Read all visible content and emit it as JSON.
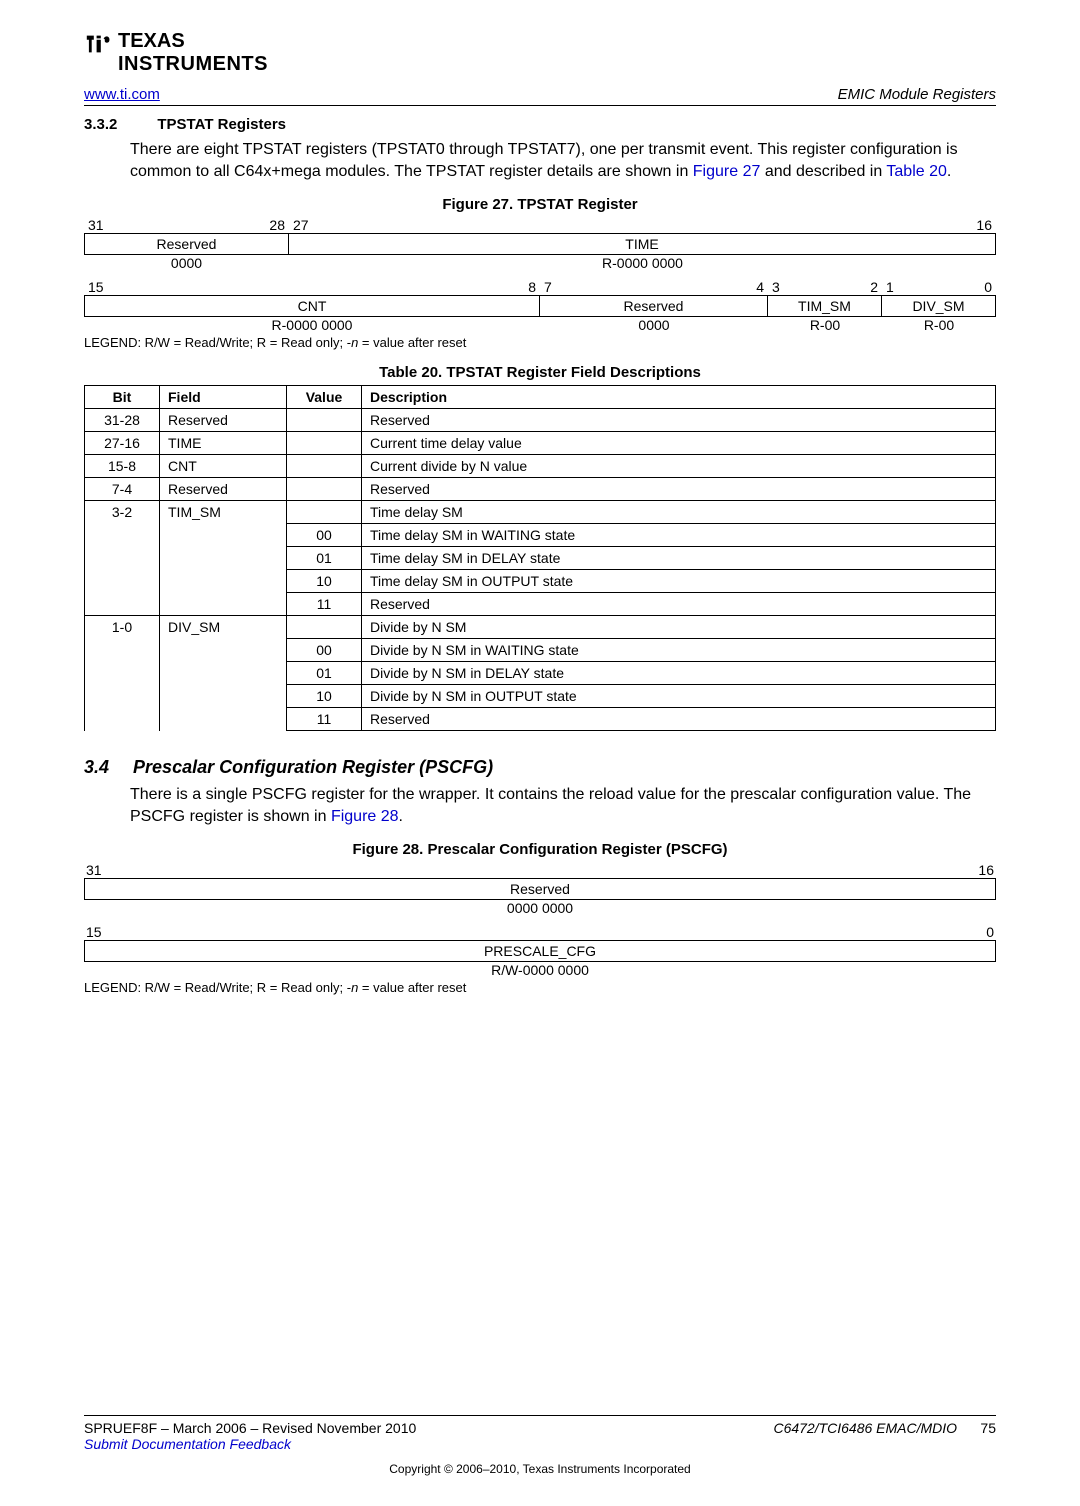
{
  "header": {
    "url": "www.ti.com",
    "url_href": "#",
    "section_right": "EMIC Module Registers"
  },
  "sec332": {
    "num": "3.3.2",
    "title": "TPSTAT Registers",
    "para_pre": "There are eight TPSTAT registers (TPSTAT0 through TPSTAT7), one per transmit event. This register configuration is common to all C64x+mega modules. The TPSTAT register details are shown in ",
    "fig_link": "Figure 27",
    "para_mid": " and described in ",
    "tbl_link": "Table 20",
    "para_end": "."
  },
  "fig27": {
    "caption": "Figure 27. TPSTAT Register",
    "row1_bits": {
      "b31": "31",
      "b28": "28",
      "b27": "27",
      "b16": "16"
    },
    "row1_fields": {
      "reserved": "Reserved",
      "time": "TIME"
    },
    "row1_reset": {
      "reserved": "0000",
      "time": "R-0000 0000"
    },
    "row2_bits": {
      "b15": "15",
      "b8": "8",
      "b7": "7",
      "b4": "4",
      "b3": "3",
      "b2": "2",
      "b1": "1",
      "b0": "0"
    },
    "row2_fields": {
      "cnt": "CNT",
      "reserved": "Reserved",
      "tim_sm": "TIM_SM",
      "div_sm": "DIV_SM"
    },
    "row2_reset": {
      "cnt": "R-0000 0000",
      "reserved": "0000",
      "tim_sm": "R-00",
      "div_sm": "R-00"
    },
    "legend_pre": "LEGEND: R/W = Read/Write; R = Read only; -",
    "legend_n": "n",
    "legend_post": " = value after reset"
  },
  "tbl20": {
    "caption": "Table 20. TPSTAT Register Field Descriptions",
    "headers": {
      "bit": "Bit",
      "field": "Field",
      "value": "Value",
      "desc": "Description"
    },
    "rows": [
      {
        "bit": "31-28",
        "field": "Reserved",
        "value": "",
        "desc": "Reserved",
        "topborder": true
      },
      {
        "bit": "27-16",
        "field": "TIME",
        "value": "",
        "desc": "Current time delay value",
        "topborder": true
      },
      {
        "bit": "15-8",
        "field": "CNT",
        "value": "",
        "desc": "Current divide by N value",
        "topborder": true
      },
      {
        "bit": "7-4",
        "field": "Reserved",
        "value": "",
        "desc": "Reserved",
        "topborder": true
      },
      {
        "bit": "3-2",
        "field": "TIM_SM",
        "value": "",
        "desc": "Time delay SM",
        "topborder": true
      },
      {
        "bit": "",
        "field": "",
        "value": "00",
        "desc": "Time delay SM in WAITING state",
        "topborder": false
      },
      {
        "bit": "",
        "field": "",
        "value": "01",
        "desc": "Time delay SM in DELAY state",
        "topborder": false
      },
      {
        "bit": "",
        "field": "",
        "value": "10",
        "desc": "Time delay SM in OUTPUT state",
        "topborder": false
      },
      {
        "bit": "",
        "field": "",
        "value": "11",
        "desc": "Reserved",
        "topborder": false
      },
      {
        "bit": "1-0",
        "field": "DIV_SM",
        "value": "",
        "desc": "Divide by N SM",
        "topborder": true
      },
      {
        "bit": "",
        "field": "",
        "value": "00",
        "desc": "Divide by N SM in WAITING state",
        "topborder": false
      },
      {
        "bit": "",
        "field": "",
        "value": "01",
        "desc": "Divide by N SM in DELAY state",
        "topborder": false
      },
      {
        "bit": "",
        "field": "",
        "value": "10",
        "desc": "Divide by N SM in OUTPUT state",
        "topborder": false
      },
      {
        "bit": "",
        "field": "",
        "value": "11",
        "desc": "Reserved",
        "topborder": false
      }
    ]
  },
  "sec34": {
    "num": "3.4",
    "title": "Prescalar Configuration Register (PSCFG)",
    "para_pre": "There is a single PSCFG register for the wrapper. It contains the reload value for the prescalar configuration value. The PSCFG register is shown in ",
    "fig_link": "Figure 28",
    "para_end": "."
  },
  "fig28": {
    "caption": "Figure 28. Prescalar Configuration Register (PSCFG)",
    "row1_bits": {
      "b31": "31",
      "b16": "16"
    },
    "row1_field": "Reserved",
    "row1_reset": "0000 0000",
    "row2_bits": {
      "b15": "15",
      "b0": "0"
    },
    "row2_field": "PRESCALE_CFG",
    "row2_reset": "R/W-0000 0000",
    "legend_pre": "LEGEND: R/W = Read/Write; R = Read only; -",
    "legend_n": "n",
    "legend_post": " = value after reset"
  },
  "footer": {
    "doc_left": "SPRUEF8F – March 2006 – Revised November 2010",
    "feedback": "Submit Documentation Feedback",
    "doc_right": "C6472/TCI6486 EMAC/MDIO",
    "page": "75",
    "copyright": "Copyright © 2006–2010, Texas Instruments Incorporated"
  }
}
